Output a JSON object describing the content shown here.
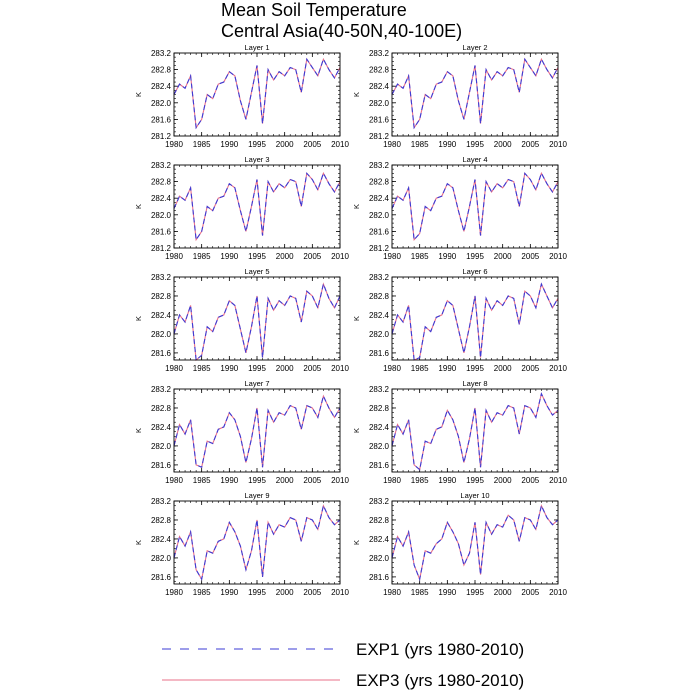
{
  "title_line1": "Mean Soil Temperature",
  "title_line2": "Central Asia(40-50N,40-100E)",
  "legend": [
    {
      "label": "EXP1 (yrs 1980-2010)",
      "color": "#3b3bd6",
      "dash": true
    },
    {
      "label": "EXP3 (yrs 1980-2010)",
      "color": "#e8708a",
      "dash": false
    }
  ],
  "chart_data": {
    "type": "line",
    "x": [
      1980,
      1981,
      1982,
      1983,
      1984,
      1985,
      1986,
      1987,
      1988,
      1989,
      1990,
      1991,
      1992,
      1993,
      1994,
      1995,
      1996,
      1997,
      1998,
      1999,
      2000,
      2001,
      2002,
      2003,
      2004,
      2005,
      2006,
      2007,
      2008,
      2009,
      2010
    ],
    "xlim": [
      1980,
      2010
    ],
    "xticks": [
      1980,
      1985,
      1990,
      1995,
      2000,
      2005,
      2010
    ],
    "ylabel": "K",
    "panels": [
      {
        "title": "Layer 1",
        "ylim": [
          281.2,
          283.2
        ],
        "yticks": [
          "283.2",
          "282.8",
          "282.4",
          "282.0",
          "281.6",
          "281.2"
        ],
        "values": [
          282.2,
          282.45,
          282.35,
          282.65,
          281.4,
          281.6,
          282.2,
          282.1,
          282.45,
          282.5,
          282.75,
          282.65,
          282.05,
          281.6,
          282.25,
          282.9,
          281.5,
          282.8,
          282.55,
          282.75,
          282.65,
          282.85,
          282.8,
          282.25,
          283.05,
          282.85,
          282.65,
          283.05,
          282.8,
          282.6,
          282.85
        ]
      },
      {
        "title": "Layer 2",
        "ylim": [
          281.2,
          283.2
        ],
        "yticks": [
          "283.2",
          "282.8",
          "282.4",
          "282.0",
          "281.6",
          "281.2"
        ],
        "values": [
          282.2,
          282.45,
          282.35,
          282.65,
          281.4,
          281.6,
          282.2,
          282.1,
          282.45,
          282.5,
          282.75,
          282.65,
          282.05,
          281.6,
          282.25,
          282.9,
          281.5,
          282.8,
          282.55,
          282.75,
          282.65,
          282.85,
          282.8,
          282.25,
          283.05,
          282.85,
          282.65,
          283.05,
          282.8,
          282.6,
          282.85
        ]
      },
      {
        "title": "Layer 3",
        "ylim": [
          281.2,
          283.2
        ],
        "yticks": [
          "283.2",
          "282.8",
          "282.4",
          "282.0",
          "281.6",
          "281.2"
        ],
        "values": [
          282.15,
          282.45,
          282.35,
          282.65,
          281.4,
          281.6,
          282.2,
          282.1,
          282.4,
          282.45,
          282.75,
          282.65,
          282.1,
          281.6,
          282.2,
          282.85,
          281.5,
          282.8,
          282.55,
          282.75,
          282.65,
          282.85,
          282.8,
          282.2,
          283.0,
          282.85,
          282.6,
          283.0,
          282.75,
          282.55,
          282.8
        ]
      },
      {
        "title": "Layer 4",
        "ylim": [
          281.2,
          283.2
        ],
        "yticks": [
          "283.2",
          "282.8",
          "282.4",
          "282.0",
          "281.6",
          "281.2"
        ],
        "values": [
          282.15,
          282.45,
          282.35,
          282.65,
          281.4,
          281.55,
          282.2,
          282.1,
          282.4,
          282.45,
          282.75,
          282.65,
          282.1,
          281.6,
          282.2,
          282.85,
          281.5,
          282.8,
          282.55,
          282.75,
          282.65,
          282.85,
          282.8,
          282.2,
          283.0,
          282.85,
          282.6,
          283.0,
          282.75,
          282.55,
          282.8
        ]
      },
      {
        "title": "Layer 5",
        "ylim": [
          281.45,
          283.2
        ],
        "yticks": [
          "283.2",
          "282.8",
          "282.4",
          "282.0",
          "281.6"
        ],
        "values": [
          282.0,
          282.4,
          282.25,
          282.6,
          281.45,
          281.55,
          282.15,
          282.05,
          282.35,
          282.4,
          282.7,
          282.6,
          282.1,
          281.6,
          282.15,
          282.8,
          281.5,
          282.75,
          282.5,
          282.7,
          282.6,
          282.8,
          282.75,
          282.25,
          282.9,
          282.8,
          282.55,
          283.05,
          282.75,
          282.55,
          282.8
        ]
      },
      {
        "title": "Layer 6",
        "ylim": [
          281.45,
          283.2
        ],
        "yticks": [
          "283.2",
          "282.8",
          "282.4",
          "282.0",
          "281.6"
        ],
        "values": [
          282.0,
          282.4,
          282.25,
          282.6,
          281.45,
          281.5,
          282.15,
          282.05,
          282.35,
          282.4,
          282.7,
          282.6,
          282.1,
          281.6,
          282.15,
          282.8,
          281.5,
          282.75,
          282.5,
          282.7,
          282.6,
          282.8,
          282.75,
          282.2,
          282.9,
          282.8,
          282.55,
          283.05,
          282.8,
          282.55,
          282.75
        ]
      },
      {
        "title": "Layer 7",
        "ylim": [
          281.45,
          283.2
        ],
        "yticks": [
          "283.2",
          "282.8",
          "282.4",
          "282.0",
          "281.6"
        ],
        "values": [
          282.0,
          282.45,
          282.25,
          282.55,
          281.6,
          281.55,
          282.1,
          282.05,
          282.35,
          282.4,
          282.7,
          282.55,
          282.2,
          281.65,
          282.15,
          282.8,
          281.55,
          282.75,
          282.5,
          282.7,
          282.65,
          282.85,
          282.8,
          282.35,
          282.85,
          282.8,
          282.6,
          283.05,
          282.8,
          282.6,
          282.8
        ]
      },
      {
        "title": "Layer 8",
        "ylim": [
          281.45,
          283.2
        ],
        "yticks": [
          "283.2",
          "282.8",
          "282.4",
          "282.0",
          "281.6"
        ],
        "values": [
          282.0,
          282.45,
          282.25,
          282.55,
          281.6,
          281.5,
          282.1,
          282.05,
          282.35,
          282.4,
          282.75,
          282.55,
          282.2,
          281.65,
          282.15,
          282.8,
          281.55,
          282.75,
          282.5,
          282.7,
          282.65,
          282.85,
          282.8,
          282.25,
          282.85,
          282.8,
          282.6,
          283.1,
          282.85,
          282.65,
          282.75
        ]
      },
      {
        "title": "Layer 9",
        "ylim": [
          281.45,
          283.2
        ],
        "yticks": [
          "283.2",
          "282.8",
          "282.4",
          "282.0",
          "281.6"
        ],
        "values": [
          282.0,
          282.45,
          282.25,
          282.55,
          281.75,
          281.55,
          282.15,
          282.1,
          282.35,
          282.4,
          282.75,
          282.55,
          282.25,
          281.75,
          282.15,
          282.8,
          281.6,
          282.75,
          282.5,
          282.7,
          282.65,
          282.85,
          282.8,
          282.35,
          282.85,
          282.8,
          282.6,
          283.1,
          282.85,
          282.7,
          282.8
        ]
      },
      {
        "title": "Layer 10",
        "ylim": [
          281.45,
          283.2
        ],
        "yticks": [
          "283.2",
          "282.8",
          "282.4",
          "282.0",
          "281.6"
        ],
        "values": [
          282.0,
          282.45,
          282.25,
          282.55,
          281.85,
          281.55,
          282.15,
          282.1,
          282.3,
          282.4,
          282.75,
          282.55,
          282.3,
          281.85,
          282.1,
          282.75,
          281.65,
          282.75,
          282.5,
          282.7,
          282.65,
          282.9,
          282.8,
          282.35,
          282.85,
          282.8,
          282.6,
          283.1,
          282.85,
          282.7,
          282.8
        ]
      }
    ]
  }
}
